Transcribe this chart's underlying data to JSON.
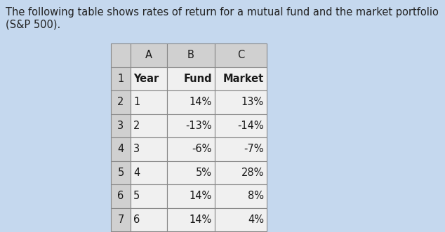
{
  "title_line1": "The following table shows rates of return for a mutual fund and the market portfolio",
  "title_line2": "(S&P 500).",
  "background_color": "#c5d8ee",
  "table_header_bg": "#d0d0d0",
  "table_data_bg": "#f0f0f0",
  "table_border_color": "#888888",
  "col_headers": [
    "A",
    "B",
    "C"
  ],
  "row_headers": [
    "1",
    "2",
    "3",
    "4",
    "5",
    "6",
    "7"
  ],
  "data_headers": [
    "Year",
    "Fund",
    "Market"
  ],
  "data_rows": [
    [
      "1",
      "14%",
      "13%"
    ],
    [
      "2",
      "-13%",
      "-14%"
    ],
    [
      "3",
      "-6%",
      "-7%"
    ],
    [
      "4",
      "5%",
      "28%"
    ],
    [
      "5",
      "14%",
      "8%"
    ],
    [
      "6",
      "14%",
      "4%"
    ]
  ],
  "title_fontsize": 10.5,
  "table_fontsize": 10.5,
  "fig_width": 6.34,
  "fig_height": 3.31,
  "dpi": 100
}
